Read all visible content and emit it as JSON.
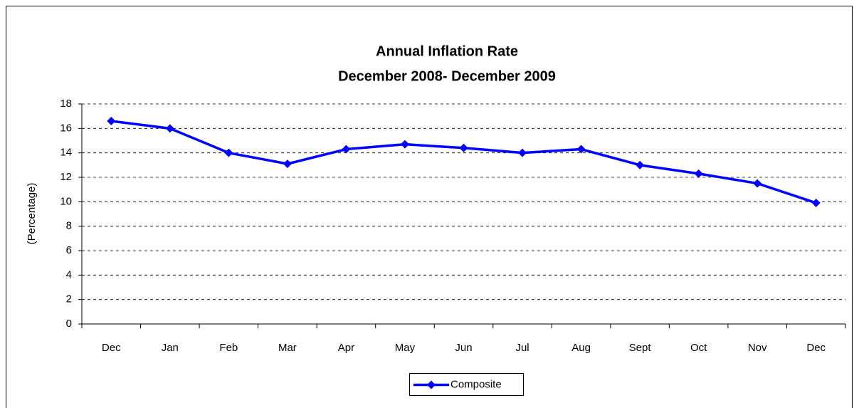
{
  "chart_data": {
    "type": "line",
    "title": "Annual Inflation Rate",
    "subtitle": "December 2008- December 2009",
    "y_label": "(Percentage)",
    "categories": [
      "Dec",
      "Jan",
      "Feb",
      "Mar",
      "Apr",
      "May",
      "Jun",
      "Jul",
      "Aug",
      "Sept",
      "Oct",
      "Nov",
      "Dec"
    ],
    "series": [
      {
        "name": "Composite",
        "color": "#0000ff",
        "values": [
          16.6,
          16.0,
          14.0,
          13.1,
          14.3,
          14.7,
          14.4,
          14.0,
          14.3,
          13.0,
          12.3,
          11.5,
          9.9
        ]
      }
    ],
    "ylim": [
      0,
      18
    ],
    "yticks": [
      0,
      2,
      4,
      6,
      8,
      10,
      12,
      14,
      16,
      18
    ],
    "grid": true,
    "legend": "bottom"
  }
}
